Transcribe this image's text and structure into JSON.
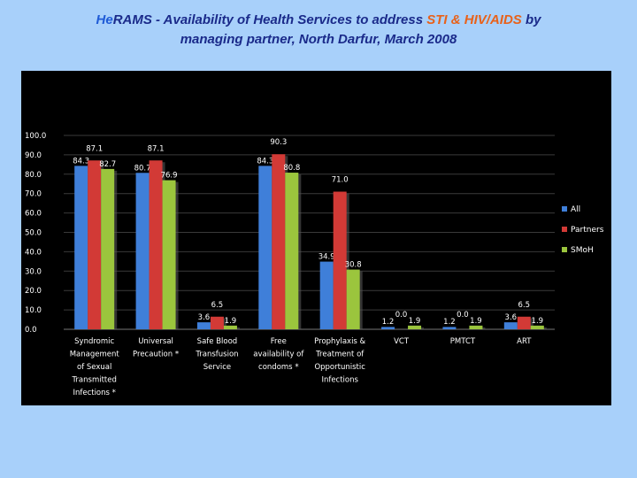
{
  "slide": {
    "title_prefix": "He",
    "title_rams": "RAMS -  Availability of Health Services to address ",
    "title_highlight": "STI & HIV/AIDS",
    "title_suffix": "  by",
    "title_line2": "managing partner, North Darfur, March 2008"
  },
  "chart_data": {
    "type": "bar",
    "categories": [
      [
        "Syndromic",
        "Management",
        "of Sexual",
        "Transmitted",
        "Infections *"
      ],
      [
        "Universal",
        "Precaution *"
      ],
      [
        "Safe Blood",
        "Transfusion",
        "Service"
      ],
      [
        "Free",
        "availability of",
        "condoms *"
      ],
      [
        "Prophylaxis &",
        "Treatment of",
        "Opportunistic",
        "Infections"
      ],
      [
        "VCT"
      ],
      [
        "PMTCT"
      ],
      [
        "ART"
      ]
    ],
    "series": [
      {
        "name": "All",
        "color": "#3f7fd9",
        "values": [
          84.3,
          80.7,
          3.6,
          84.3,
          34.9,
          1.2,
          1.2,
          3.6
        ]
      },
      {
        "name": "Partners",
        "color": "#d23a36",
        "values": [
          87.1,
          87.1,
          6.5,
          90.3,
          71.0,
          0.0,
          0.0,
          6.5
        ]
      },
      {
        "name": "SMoH",
        "color": "#9bc53d",
        "values": [
          82.7,
          76.9,
          1.9,
          80.8,
          30.8,
          1.9,
          1.9,
          1.9
        ]
      }
    ],
    "value_labels": [
      [
        "84.3",
        "87.1",
        "82.7"
      ],
      [
        "80.7",
        "87.1",
        "76.9"
      ],
      [
        "3.6",
        "6.5",
        "1.9"
      ],
      [
        "84.3",
        "90.3",
        "80.8"
      ],
      [
        "34.9",
        "71.0",
        "30.8"
      ],
      [
        "1.2",
        "0.0",
        "1.9"
      ],
      [
        "1.2",
        "0.0",
        "1.9"
      ],
      [
        "3.6",
        "6.5",
        "1.9"
      ]
    ],
    "ylim": [
      0,
      100
    ],
    "yticks": [
      "0.0",
      "10.0",
      "20.0",
      "30.0",
      "40.0",
      "50.0",
      "60.0",
      "70.0",
      "80.0",
      "90.0",
      "100.0"
    ],
    "grid": true,
    "legend": "right"
  }
}
